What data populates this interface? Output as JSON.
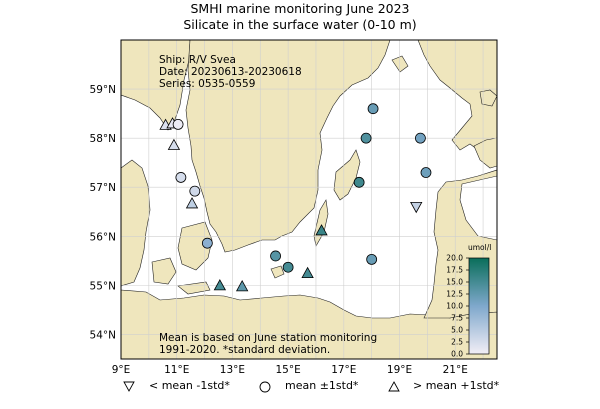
{
  "title": "SMHI marine monitoring June 2023",
  "subtitle": "Silicate in the surface water (0-10 m)",
  "info": {
    "ship": "Ship: R/V Svea",
    "date": "Date: 20230613-20230618",
    "series": "Series: 0535-0559"
  },
  "note_line1": "Mean is based on June station monitoring",
  "note_line2": "1991-2020. *standard deviation.",
  "colorbar": {
    "unit": "umol/l",
    "min": 0.0,
    "max": 20.0,
    "ticks": [
      "20.0",
      "17.5",
      "15.0",
      "12.5",
      "10.0",
      "7.5",
      "5.0",
      "2.5",
      "0.0"
    ],
    "color_low": "#f2eef6",
    "color_mid": "#7fa8cc",
    "color_high": "#0a6e5a"
  },
  "axes": {
    "lon_range": [
      9,
      22.5
    ],
    "lat_range": [
      53.5,
      60.0
    ],
    "x_ticks": [
      "9°E",
      "11°E",
      "13°E",
      "15°E",
      "17°E",
      "19°E",
      "21°E"
    ],
    "y_ticks": [
      "54°N",
      "55°N",
      "56°N",
      "57°N",
      "58°N",
      "59°N"
    ]
  },
  "colors": {
    "land": "#efe6bd",
    "sea": "#ffffff",
    "grid": "#cfcfcf",
    "coast": "#222222"
  },
  "legend": {
    "below": "< mean -1std*",
    "within": "mean ±1std*",
    "above": "> mean +1std*"
  },
  "chart_data": {
    "type": "scatter",
    "xlabel": "",
    "ylabel": "",
    "points": [
      {
        "lon": 10.6,
        "lat": 58.27,
        "value": 2.0,
        "marker": "above"
      },
      {
        "lon": 10.85,
        "lat": 58.3,
        "value": 1.0,
        "marker": "above"
      },
      {
        "lon": 11.05,
        "lat": 58.28,
        "value": 0.5,
        "marker": "within"
      },
      {
        "lon": 10.9,
        "lat": 57.86,
        "value": 2.5,
        "marker": "above"
      },
      {
        "lon": 11.15,
        "lat": 57.2,
        "value": 2.5,
        "marker": "within"
      },
      {
        "lon": 11.65,
        "lat": 56.92,
        "value": 3.0,
        "marker": "within"
      },
      {
        "lon": 11.55,
        "lat": 56.67,
        "value": 4.5,
        "marker": "above"
      },
      {
        "lon": 12.1,
        "lat": 55.86,
        "value": 9.0,
        "marker": "within"
      },
      {
        "lon": 12.55,
        "lat": 55.0,
        "value": 15.0,
        "marker": "above"
      },
      {
        "lon": 13.35,
        "lat": 54.98,
        "value": 13.0,
        "marker": "above"
      },
      {
        "lon": 14.55,
        "lat": 55.6,
        "value": 13.5,
        "marker": "within"
      },
      {
        "lon": 15.0,
        "lat": 55.37,
        "value": 15.0,
        "marker": "within"
      },
      {
        "lon": 15.7,
        "lat": 55.25,
        "value": 15.0,
        "marker": "above"
      },
      {
        "lon": 16.2,
        "lat": 56.12,
        "value": 16.0,
        "marker": "above"
      },
      {
        "lon": 18.0,
        "lat": 55.53,
        "value": 12.0,
        "marker": "within"
      },
      {
        "lon": 17.55,
        "lat": 57.1,
        "value": 15.5,
        "marker": "within"
      },
      {
        "lon": 17.8,
        "lat": 58.0,
        "value": 14.0,
        "marker": "within"
      },
      {
        "lon": 18.05,
        "lat": 58.6,
        "value": 12.0,
        "marker": "within"
      },
      {
        "lon": 19.6,
        "lat": 56.6,
        "value": 4.0,
        "marker": "below"
      },
      {
        "lon": 19.75,
        "lat": 58.0,
        "value": 11.0,
        "marker": "within"
      },
      {
        "lon": 19.95,
        "lat": 57.3,
        "value": 11.5,
        "marker": "within"
      }
    ]
  }
}
